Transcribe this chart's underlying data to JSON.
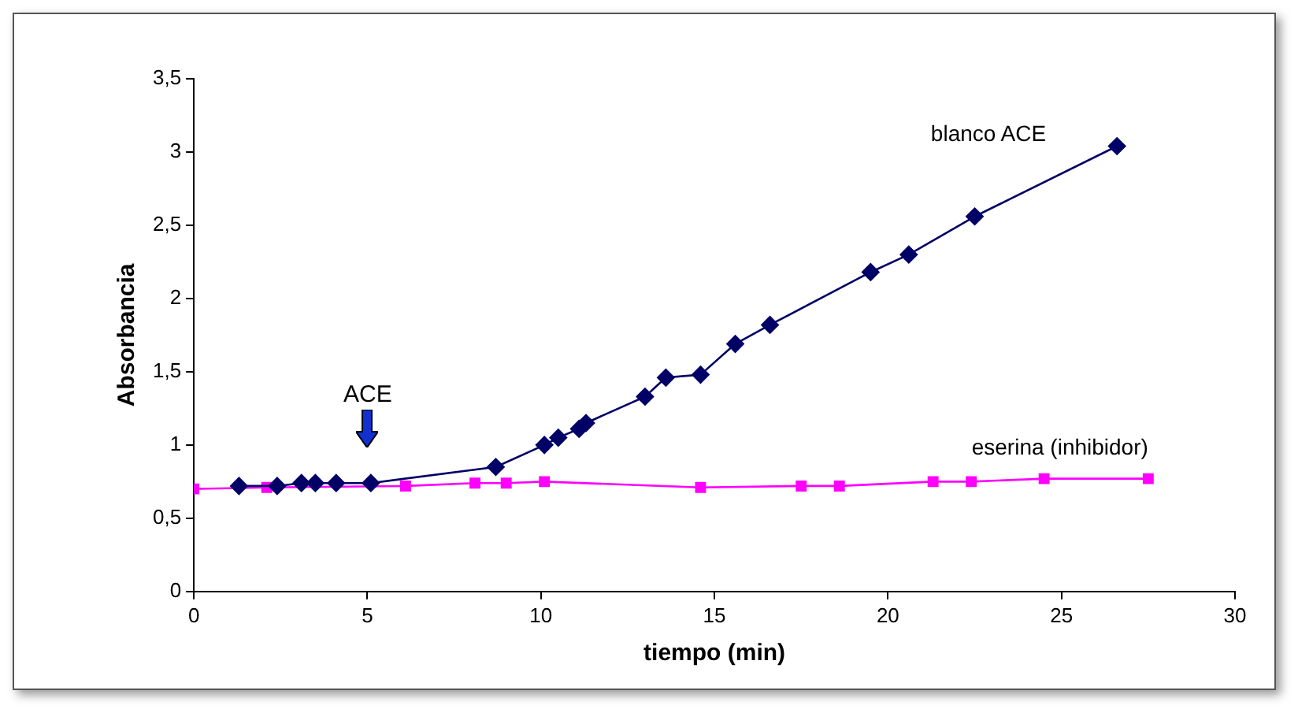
{
  "chart_data": {
    "type": "line",
    "xlabel": "tiempo (min)",
    "ylabel": "Absorbancia",
    "xlim": [
      0,
      30
    ],
    "xticks": [
      0,
      5,
      10,
      15,
      20,
      25,
      30
    ],
    "ylim": [
      0,
      3.5
    ],
    "yticks": [
      0,
      {
        "value": 0.5,
        "label": "0,5"
      },
      1,
      {
        "value": 1.5,
        "label": "1,5"
      },
      2,
      {
        "value": 2.5,
        "label": "2,5"
      },
      3,
      {
        "value": 3.5,
        "label": "3,5"
      }
    ],
    "grid": false,
    "legend": false,
    "line_style": "solid",
    "annotations": [
      "ACE"
    ],
    "series": [
      {
        "name": "blanco ACE",
        "color": "#000066",
        "marker": "diamond",
        "x": [
          1.3,
          2.4,
          3.1,
          3.5,
          4.1,
          5.1,
          8.7,
          10.1,
          10.5,
          11.1,
          11.3,
          13.0,
          13.6,
          14.6,
          15.6,
          16.6,
          19.5,
          20.6,
          22.5,
          26.6
        ],
        "values": [
          0.72,
          0.72,
          0.74,
          0.74,
          0.74,
          0.74,
          0.85,
          1.0,
          1.05,
          1.11,
          1.15,
          1.33,
          1.46,
          1.48,
          1.69,
          1.82,
          2.18,
          2.3,
          2.56,
          3.04
        ]
      },
      {
        "name": "eserina (inhibidor)",
        "color": "#ff00ff",
        "marker": "square",
        "x": [
          0,
          2.1,
          6.1,
          8.1,
          9.0,
          10.1,
          14.6,
          17.5,
          18.6,
          21.3,
          22.4,
          24.5,
          27.5
        ],
        "values": [
          0.7,
          0.71,
          0.72,
          0.74,
          0.74,
          0.75,
          0.71,
          0.72,
          0.72,
          0.75,
          0.75,
          0.77,
          0.77
        ]
      }
    ]
  }
}
